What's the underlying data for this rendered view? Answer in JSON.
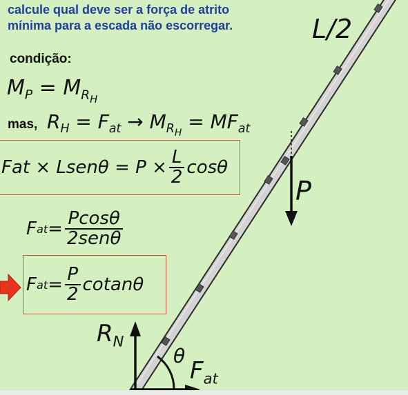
{
  "header": {
    "line1": "calcule qual deve ser a força de atrito",
    "line2": "mínima para a escada não escorregar."
  },
  "labels": {
    "condition": "condição:",
    "mas": "mas,",
    "half_length": "L/2",
    "weight": "P",
    "normal_R": "R",
    "normal_sub": "N",
    "angle": "θ",
    "friction_F": "F",
    "friction_sub": "at"
  },
  "eq1": {
    "lhs_M": "M",
    "lhs_sub": "P",
    "eq": " = ",
    "rhs_M": "M",
    "rhs_sub": "R",
    "rhs_subsub": "H"
  },
  "eq2": {
    "R": "R",
    "R_sub": "H",
    "eq1": " = ",
    "F": "F",
    "F_sub": "at",
    "arrow": " → ",
    "M": "M",
    "M_sub": "R",
    "M_subsub": "H",
    "eq2": " = ",
    "MF": "MF",
    "MF_sub": "at"
  },
  "eq3": {
    "lhs": "Fat × Lsenθ = P × ",
    "num": "L",
    "den": "2",
    "tail": "cosθ"
  },
  "eq4": {
    "F": "F",
    "F_sub": "at",
    "eq": " = ",
    "num": "Pcosθ",
    "den": "2senθ"
  },
  "eq5": {
    "F": "F",
    "F_sub": "at",
    "eq": " = ",
    "num": "P",
    "den": "2",
    "tail": "cotanθ"
  },
  "colors": {
    "background": "#d4f0c0",
    "header_text": "#1f3f9a",
    "box_border": "#d9503a",
    "pointer_arrow": "#e8341c",
    "ladder_fill": "#d3d3d3",
    "ladder_rung": "#555555"
  }
}
